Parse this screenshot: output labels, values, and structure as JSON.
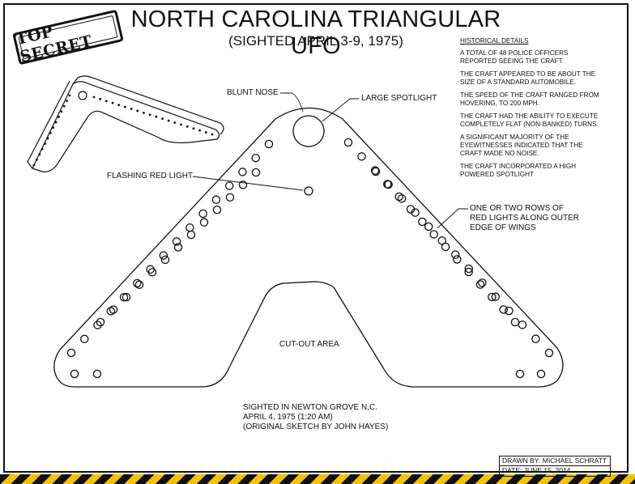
{
  "title": "NORTH CAROLINA TRIANGULAR UFO",
  "subtitle": "(SIGHTED APRIL 3-9, 1975)",
  "stamp": "TOP SECRET",
  "historical": {
    "heading": "HISTORICAL DETAILS",
    "items": [
      "A TOTAL OF 48 POLICE OFFICERS REPORTED SEEING THE CRAFT.",
      "THE CRAFT APPEARED TO BE ABOUT THE SIZE OF A STANDARD AUTOMOBILE.",
      "THE SPEED OF THE CRAFT RANGED FROM HOVERING, TO 200 MPH.",
      "THE CRAFT HAD THE ABILITY TO EXECUTE COMPLETELY FLAT (NON-BANKED) TURNS.",
      "A SIGNIFICANT MAJORITY OF THE EYEWITNESSES INDICATED THAT THE CRAFT MADE NO NOISE.",
      "THE CRAFT INCORPORATED A HIGH POWERED SPOTLIGHT"
    ]
  },
  "labels": {
    "blunt_nose": "BLUNT NOSE",
    "spotlight": "LARGE SPOTLIGHT",
    "red_light": "FLASHING RED LIGHT",
    "rows_line1": "ONE OR TWO ROWS OF",
    "rows_line2": "RED LIGHTS ALONG OUTER",
    "rows_line3": "EDGE OF WINGS",
    "cutout": "CUT-OUT AREA"
  },
  "sighting": {
    "line1": "SIGHTED IN NEWTON GROVE N.C.",
    "line2": "APRIL 4, 1975 (1:20 AM)",
    "line3": "(ORIGINAL SKETCH BY JOHN HAYES)"
  },
  "titleblock": {
    "drawn_by": "DRAWN BY: MICHAEL SCHRATT",
    "date": "DATE: JUNE 15, 2014"
  }
}
